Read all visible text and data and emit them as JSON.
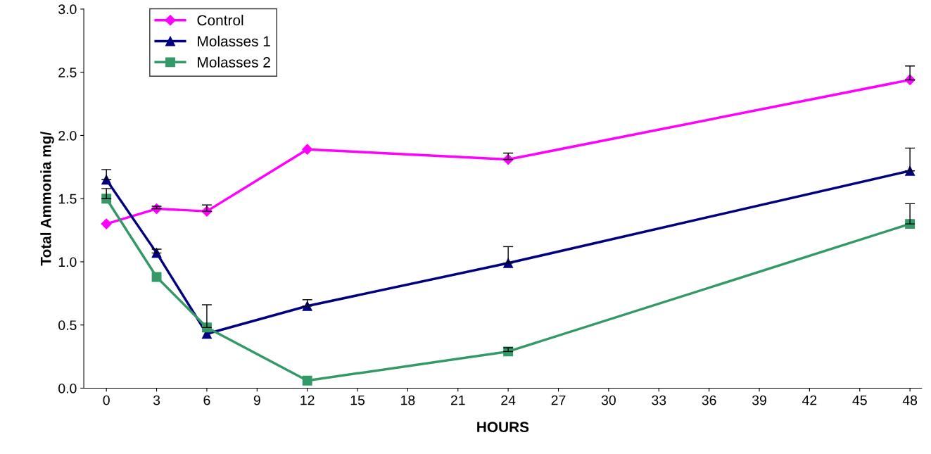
{
  "chart_data": {
    "type": "line",
    "xlabel": "HOURS",
    "ylabel": "Total Ammonia mg/",
    "x": [
      0,
      3,
      6,
      12,
      24,
      48
    ],
    "series": [
      {
        "name": "Control",
        "color": "#ff00ff",
        "marker": "diamond",
        "values": [
          1.3,
          1.42,
          1.4,
          1.89,
          1.81,
          2.44
        ],
        "errors": [
          null,
          [
            1.42,
            1.44
          ],
          [
            1.4,
            1.45
          ],
          null,
          [
            1.81,
            1.86
          ],
          [
            2.44,
            2.55
          ]
        ]
      },
      {
        "name": "Molasses 1",
        "color": "#000080",
        "marker": "triangle",
        "values": [
          1.65,
          1.07,
          0.43,
          0.65,
          0.99,
          1.72
        ],
        "errors": [
          [
            1.65,
            1.73
          ],
          [
            1.07,
            1.1
          ],
          null,
          [
            0.65,
            0.7
          ],
          [
            0.99,
            1.12
          ],
          [
            1.72,
            1.9
          ]
        ]
      },
      {
        "name": "Molasses 2",
        "color": "#339966",
        "marker": "square",
        "values": [
          1.5,
          0.88,
          0.48,
          0.06,
          0.29,
          1.3
        ],
        "errors": [
          [
            1.5,
            1.58
          ],
          null,
          [
            0.48,
            0.66
          ],
          null,
          [
            0.29,
            0.32
          ],
          [
            1.3,
            1.46
          ]
        ]
      }
    ],
    "xlim": [
      -1.35,
      48.7
    ],
    "xticks": [
      0,
      3,
      6,
      9,
      12,
      15,
      18,
      21,
      24,
      27,
      30,
      33,
      36,
      39,
      42,
      45,
      48
    ],
    "ylim": [
      0,
      3.0
    ],
    "yticks": [
      {
        "value": 0,
        "label": "0.0"
      },
      {
        "value": 0.5,
        "label": "0.5"
      },
      {
        "value": 1.0,
        "label": "1.0"
      },
      {
        "value": 1.5,
        "label": "1.5"
      },
      {
        "value": 2.0,
        "label": "2.0"
      },
      {
        "value": 2.5,
        "label": "2.5"
      },
      {
        "value": 3.0,
        "label": "3.0"
      }
    ],
    "grid": false,
    "legend": "top left",
    "line_style": "solid"
  }
}
